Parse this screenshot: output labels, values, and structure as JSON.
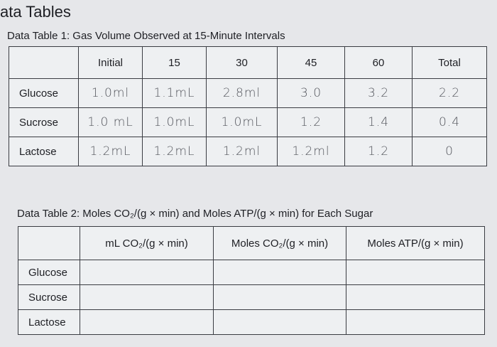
{
  "header": {
    "title": "ata Tables"
  },
  "table1": {
    "title": "Data Table 1: Gas Volume Observed at 15-Minute Intervals",
    "columns": [
      "Initial",
      "15",
      "30",
      "45",
      "60",
      "Total"
    ],
    "rows": [
      {
        "label": "Glucose",
        "cells": [
          "1.0ml",
          "1.1mL",
          "2.8ml",
          "3.0",
          "3.2",
          "2.2"
        ]
      },
      {
        "label": "Sucrose",
        "cells": [
          "1.0 mL",
          "1.0mL",
          "1.0mL",
          "1.2",
          "1.4",
          "0.4"
        ]
      },
      {
        "label": "Lactose",
        "cells": [
          "1.2mL",
          "1.2mL",
          "1.2ml",
          "1.2ml",
          "1.2",
          "0"
        ]
      }
    ]
  },
  "table2": {
    "title": "Data Table 2: Moles CO₂/(g × min) and Moles ATP/(g × min) for Each Sugar",
    "columns": [
      "mL CO₂/(g × min)",
      "Moles CO₂/(g × min)",
      "Moles ATP/(g × min)"
    ],
    "rows": [
      "Glucose",
      "Sucrose",
      "Lactose"
    ]
  }
}
